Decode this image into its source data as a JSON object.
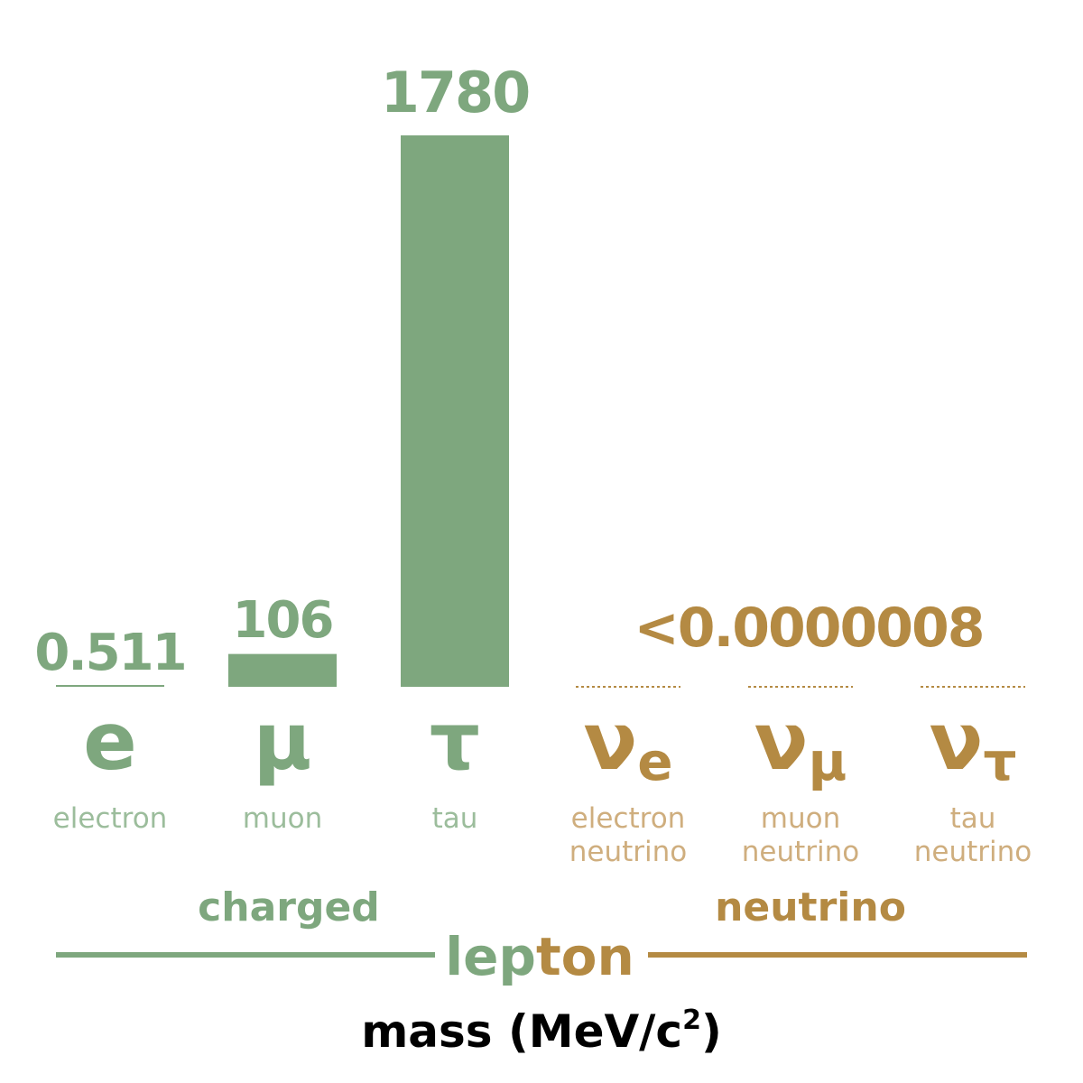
{
  "colors": {
    "charged": "#7ea77e",
    "charged_light": "#9cbd9c",
    "neutrino": "#b48a43",
    "neutrino_light": "#cfae7e",
    "text": "#000000"
  },
  "chart_data": {
    "type": "bar",
    "categories": [
      "e",
      "μ",
      "τ",
      "νe",
      "νμ",
      "ντ"
    ],
    "values": [
      0.511,
      106,
      1780,
      8e-07,
      8e-07,
      8e-07
    ],
    "value_labels": [
      "0.511",
      "106",
      "1780",
      "<0.0000008",
      "",
      ""
    ],
    "particles": [
      {
        "symbol": "e",
        "sub": "",
        "name_lines": [
          "electron"
        ],
        "group": "charged"
      },
      {
        "symbol": "μ",
        "sub": "",
        "name_lines": [
          "muon"
        ],
        "group": "charged"
      },
      {
        "symbol": "τ",
        "sub": "",
        "name_lines": [
          "tau"
        ],
        "group": "charged"
      },
      {
        "symbol": "ν",
        "sub": "e",
        "name_lines": [
          "electron",
          "neutrino"
        ],
        "group": "neutrino"
      },
      {
        "symbol": "ν",
        "sub": "μ",
        "name_lines": [
          "muon",
          "neutrino"
        ],
        "group": "neutrino"
      },
      {
        "symbol": "ν",
        "sub": "τ",
        "name_lines": [
          "tau",
          "neutrino"
        ],
        "group": "neutrino"
      }
    ],
    "group_labels": {
      "charged": "charged",
      "neutrino": "neutrino"
    },
    "title_left": "lep",
    "title_right": "ton",
    "xlabel": "mass (MeV/c",
    "xlabel_sup": "2",
    "xlabel_end": ")",
    "ylim": [
      0,
      1780
    ],
    "grid": false
  }
}
